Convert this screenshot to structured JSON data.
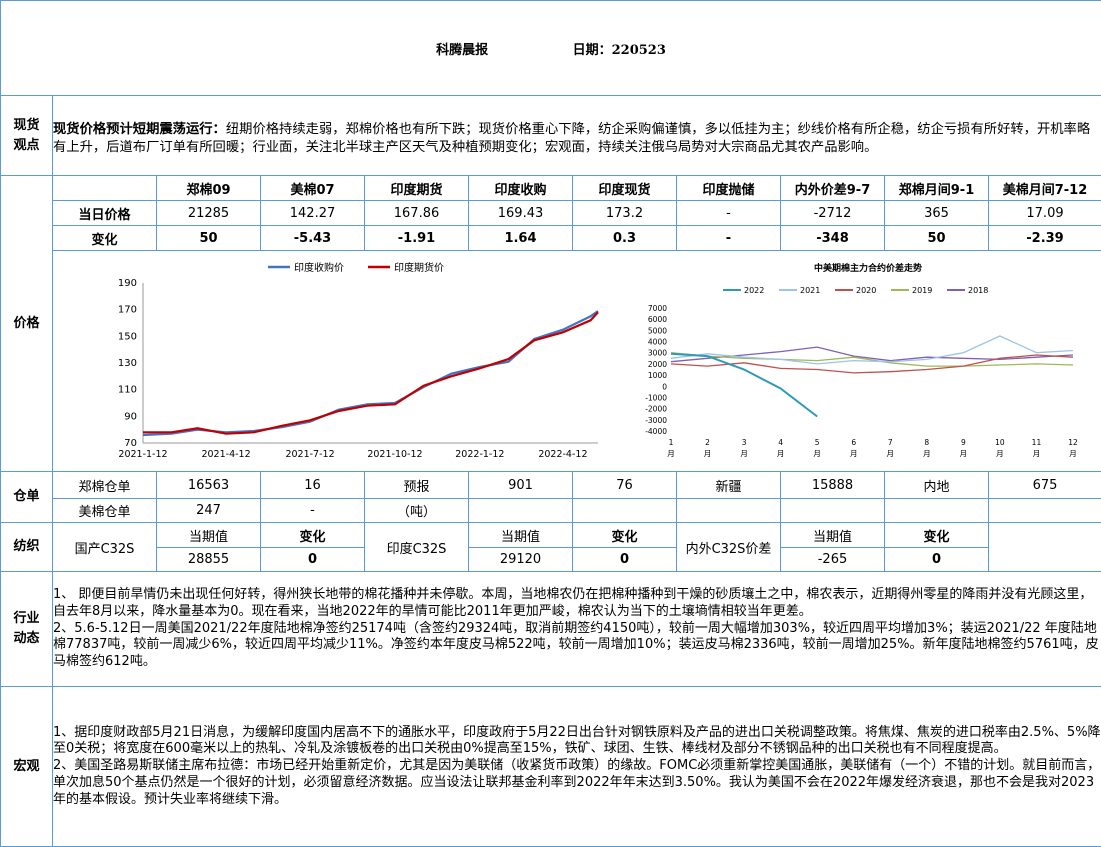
{
  "header": {
    "title": "科腾晨报",
    "date": "日期：220523"
  },
  "spot": {
    "label": "现货观点",
    "lead": "现货价格预计短期震荡运行：",
    "body": "纽期价格持续走弱，郑棉价格也有所下跌；现货价格重心下降，纺企采购偏谨慎，多以低挂为主；纱线价格有所企稳，纺企亏损有所好转，开机率略有上升，后道布厂订单有所回暖；行业面，关注北半球主产区天气及种植预期变化；宏观面，持续关注俄乌局势对大宗商品尤其农产品影响。"
  },
  "price": {
    "label": "价格",
    "headers": [
      "郑棉09",
      "美棉07",
      "印度期货",
      "印度收购",
      "印度现货",
      "印度抛储",
      "内外价差9-7",
      "郑棉月间9-1",
      "美棉月间7-12"
    ],
    "row1_label": "当日价格",
    "row1": [
      "21285",
      "142.27",
      "167.86",
      "169.43",
      "173.2",
      "-",
      "-2712",
      "365",
      "17.09"
    ],
    "row2_label": "变化",
    "row2": [
      "50",
      "-5.43",
      "-1.91",
      "1.64",
      "0.3",
      "-",
      "-348",
      "50",
      "-2.39"
    ]
  },
  "chart_data": [
    {
      "type": "line",
      "legend": [
        "印度收购价",
        "印度期货价"
      ],
      "colors": [
        "#4472c4",
        "#c00000"
      ],
      "xticks": [
        "2021-1-12",
        "2021-4-12",
        "2021-7-12",
        "2021-10-12",
        "2022-1-12",
        "2022-4-12"
      ],
      "ylim": [
        70,
        190
      ],
      "yticks": [
        70,
        90,
        110,
        130,
        150,
        170,
        190
      ],
      "x": [
        "2021-01-12",
        "2021-02-12",
        "2021-03-12",
        "2021-04-12",
        "2021-05-12",
        "2021-06-12",
        "2021-07-12",
        "2021-08-12",
        "2021-09-12",
        "2021-10-12",
        "2021-11-12",
        "2021-12-12",
        "2022-01-12",
        "2022-02-12",
        "2022-03-12",
        "2022-04-12",
        "2022-05-12",
        "2022-05-20"
      ],
      "series": [
        {
          "name": "印度收购价",
          "values": [
            76,
            77,
            80,
            78,
            79,
            82,
            86,
            95,
            99,
            100,
            112,
            122,
            127,
            131,
            148,
            155,
            165,
            169
          ]
        },
        {
          "name": "印度期货价",
          "values": [
            78,
            78,
            81,
            77,
            78,
            83,
            87,
            94,
            98,
            99,
            113,
            120,
            126,
            133,
            147,
            153,
            162,
            168
          ]
        }
      ]
    },
    {
      "type": "line",
      "title": "中美期棉主力合约价差走势",
      "legend": [
        "2022",
        "2021",
        "2020",
        "2019",
        "2018"
      ],
      "colors": [
        "#2e9ab5",
        "#9dc3e6",
        "#c0504d",
        "#9bbb59",
        "#7f5fb4"
      ],
      "ylim": [
        -4000,
        7000
      ],
      "yticks": [
        -4000,
        -3000,
        -2000,
        -1000,
        0,
        1000,
        2000,
        3000,
        4000,
        5000,
        6000,
        7000
      ],
      "xticks": [
        "1\n月",
        "2\n月",
        "3\n月",
        "4\n月",
        "5\n月",
        "6\n月",
        "7\n月",
        "8\n月",
        "9\n月",
        "10\n月",
        "11\n月",
        "12\n月"
      ],
      "x": [
        1,
        2,
        3,
        4,
        5,
        6,
        7,
        8,
        9,
        10,
        11,
        12
      ],
      "series": [
        {
          "name": "2022",
          "values": [
            2900,
            2700,
            1500,
            -200,
            -2700,
            null,
            null,
            null,
            null,
            null,
            null,
            null
          ]
        },
        {
          "name": "2021",
          "values": [
            2500,
            2900,
            2600,
            2400,
            2000,
            2300,
            2200,
            2400,
            3000,
            4500,
            3000,
            3200
          ]
        },
        {
          "name": "2020",
          "values": [
            2000,
            1800,
            2100,
            1600,
            1500,
            1200,
            1300,
            1500,
            1800,
            2500,
            2800,
            2600
          ]
        },
        {
          "name": "2019",
          "values": [
            3000,
            2700,
            2500,
            2400,
            2300,
            2600,
            2100,
            1800,
            1800,
            1900,
            2000,
            1900
          ]
        },
        {
          "name": "2018",
          "values": [
            2200,
            2500,
            2800,
            3100,
            3500,
            2700,
            2300,
            2600,
            2500,
            2400,
            2600,
            2800
          ]
        }
      ]
    }
  ],
  "warehouse": {
    "label": "仓单",
    "r1": [
      "郑棉仓单",
      "16563",
      "16",
      "预报",
      "901",
      "76",
      "新疆",
      "15888",
      "内地",
      "675"
    ],
    "r2": [
      "美棉仓单",
      "247",
      "-",
      "（吨）",
      "",
      "",
      "",
      "",
      "",
      ""
    ]
  },
  "textile": {
    "label": "纺织",
    "cur": "当期值",
    "chg": "变化",
    "items": [
      {
        "name": "国产C32S",
        "value": "28855",
        "change": "0"
      },
      {
        "name": "印度C32S",
        "value": "29120",
        "change": "0"
      },
      {
        "name": "内外C32S价差",
        "value": "-265",
        "change": "0"
      }
    ]
  },
  "industry": {
    "label": "行业动态",
    "p1": "1、  即便目前旱情仍未出现任何好转，得州狭长地带的棉花播种并未停歇。本周，当地棉农仍在把棉种播种到干燥的砂质壤土之中，棉农表示，近期得州零星的降雨并没有光顾这里，自去年8月以来，降水量基本为0。现在看来，当地2022年的旱情可能比2011年更加严峻，棉农认为当下的土壤墒情相较当年更差。",
    "p2": "2、5.6-5.12日一周美国2021/22年度陆地棉净签约25174吨（含签约29324吨，取消前期签约4150吨），较前一周大幅增加303%，较近四周平均增加3%；装运2021/22 年度陆地棉77837吨，较前一周减少6%，较近四周平均减少11%。净签约本年度皮马棉522吨，较前一周增加10%；装运皮马棉2336吨，较前一周增加25%。新年度陆地棉签约5761吨，皮马棉签约612吨。"
  },
  "macro": {
    "label": "宏观",
    "p1": "1、据印度财政部5月21日消息，为缓解印度国内居高不下的通胀水平，印度政府于5月22日出台针对钢铁原料及产品的进出口关税调整政策。将焦煤、焦炭的进口税率由2.5%、5%降至0关税；将宽度在600毫米以上的热轧、冷轧及涂镀板卷的出口关税由0%提高至15%，铁矿、球团、生铁、棒线材及部分不锈钢品种的出口关税也有不同程度提高。",
    "p2": "2、美国圣路易斯联储主席布拉德：市场已经开始重新定价，尤其是因为美联储（收紧货币政策）的缘故。FOMC必须重新掌控美国通胀，美联储有（一个）不错的计划。就目前而言，单次加息50个基点仍然是一个很好的计划，必须留意经济数据。应当设法让联邦基金利率到2022年年末达到3.50%。我认为美国不会在2022年爆发经济衰退，那也不会是我对2023年的基本假设。预计失业率将继续下滑。"
  }
}
